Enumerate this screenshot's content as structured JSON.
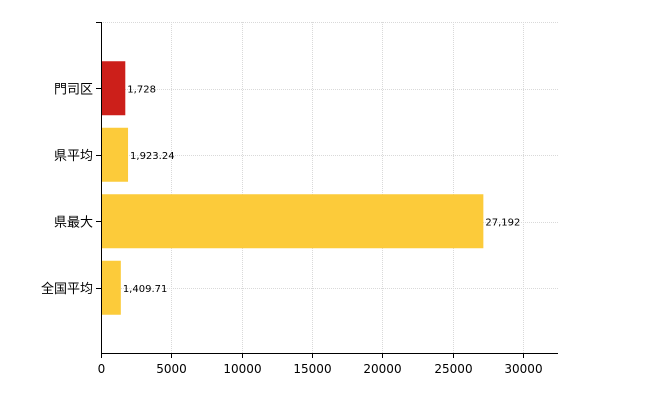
{
  "chart_data": {
    "type": "bar",
    "orientation": "horizontal",
    "categories": [
      "門司区",
      "県平均",
      "県最大",
      "全国平均"
    ],
    "values": [
      1728,
      1923.24,
      27192,
      1409.71
    ],
    "value_labels": [
      "1,728",
      "1,923.24",
      "27,192",
      "1,409.71"
    ],
    "bar_colors": [
      "#cc1f1a",
      "#fccb3a",
      "#fccb3a",
      "#fccb3a"
    ],
    "xlim": [
      0,
      32500
    ],
    "xticks": [
      0,
      5000,
      10000,
      15000,
      20000,
      25000,
      30000
    ],
    "xtick_labels": [
      "0",
      "5000",
      "10000",
      "15000",
      "20000",
      "25000",
      "30000"
    ],
    "grid": true,
    "title": "",
    "xlabel": "",
    "ylabel": ""
  }
}
